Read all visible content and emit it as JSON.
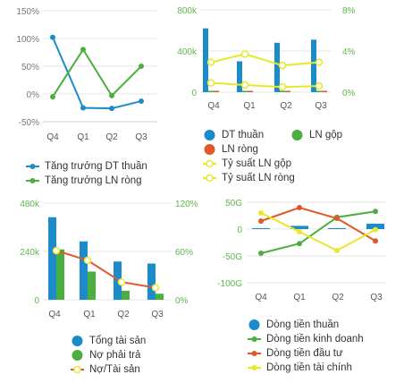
{
  "colors": {
    "blue": "#1b8cc9",
    "green": "#4cae3e",
    "orange": "#e2572a",
    "yellow": "#e8e82a",
    "axis_green": "#5cb84a",
    "axis_gray": "#777777",
    "grid": "#e6e6e6"
  },
  "chart_data": [
    {
      "id": "growth",
      "type": "line",
      "categories": [
        "Q4",
        "Q1",
        "Q2",
        "Q3"
      ],
      "y_ticks": [
        "150%",
        "100%",
        "50%",
        "0%",
        "-50%"
      ],
      "ylim": [
        -50,
        150
      ],
      "series": [
        {
          "name": "Tăng trưởng DT thuần",
          "color": "#1b8cc9",
          "values": [
            102,
            -25,
            -26,
            -13
          ]
        },
        {
          "name": "Tăng trưởng LN ròng",
          "color": "#4cae3e",
          "values": [
            -5,
            80,
            -3,
            50
          ]
        }
      ]
    },
    {
      "id": "revenue",
      "type": "bar+line",
      "categories": [
        "Q4",
        "Q1",
        "Q2",
        "Q3"
      ],
      "y_ticks_left": [
        "800k",
        "400k",
        "0"
      ],
      "y_ticks_right": [
        "8%",
        "4%",
        "0%"
      ],
      "ylim_left": [
        0,
        800
      ],
      "ylim_right": [
        0,
        8
      ],
      "bars": [
        {
          "name": "DT thuần",
          "color": "#1b8cc9",
          "values": [
            620,
            300,
            480,
            510
          ]
        },
        {
          "name": "LN gộp",
          "color": "#4cae3e",
          "values": [
            8,
            4,
            6,
            7
          ]
        },
        {
          "name": "LN ròng",
          "color": "#e2572a",
          "values": [
            3,
            2,
            3,
            3
          ]
        }
      ],
      "lines": [
        {
          "name": "Tỷ suất LN gộp",
          "color": "#e8e82a",
          "values": [
            2.9,
            3.7,
            2.6,
            2.9
          ]
        },
        {
          "name": "Tỷ suất LN ròng",
          "color": "#e8e82a",
          "values": [
            0.9,
            0.7,
            0.5,
            0.6
          ]
        }
      ]
    },
    {
      "id": "assets",
      "type": "bar+line",
      "categories": [
        "Q4",
        "Q1",
        "Q2",
        "Q3"
      ],
      "y_ticks_left": [
        "480k",
        "240k",
        "0"
      ],
      "y_ticks_right": [
        "120%",
        "60%",
        "0%"
      ],
      "ylim_left": [
        0,
        480
      ],
      "ylim_right": [
        0,
        120
      ],
      "bars": [
        {
          "name": "Tổng tài sản",
          "color": "#1b8cc9",
          "values": [
            410,
            290,
            190,
            180
          ]
        },
        {
          "name": "Nợ phải trả",
          "color": "#4cae3e",
          "values": [
            250,
            140,
            45,
            30
          ]
        }
      ],
      "lines": [
        {
          "name": "Nợ/Tài sản",
          "color": "#e2572a",
          "marker": "#e8e82a",
          "values": [
            61,
            49,
            22,
            15
          ]
        }
      ]
    },
    {
      "id": "cashflow",
      "type": "bar+line",
      "categories": [
        "Q4",
        "Q1",
        "Q2",
        "Q3"
      ],
      "y_ticks": [
        "50G",
        "0",
        "-50G",
        "-100G"
      ],
      "ylim": [
        -100,
        50
      ],
      "bars": [
        {
          "name": "Dòng tiền thuần",
          "color": "#1b8cc9",
          "values": [
            0,
            6,
            1,
            10
          ]
        }
      ],
      "lines": [
        {
          "name": "Dòng tiền kinh doanh",
          "color": "#4cae3e",
          "values": [
            -45,
            -27,
            22,
            33
          ]
        },
        {
          "name": "Dòng tiền đầu tư",
          "color": "#e2572a",
          "values": [
            15,
            40,
            20,
            -22
          ]
        },
        {
          "name": "Dòng tiền tài chính",
          "color": "#e8e82a",
          "values": [
            30,
            -5,
            -40,
            -1
          ]
        }
      ]
    }
  ]
}
